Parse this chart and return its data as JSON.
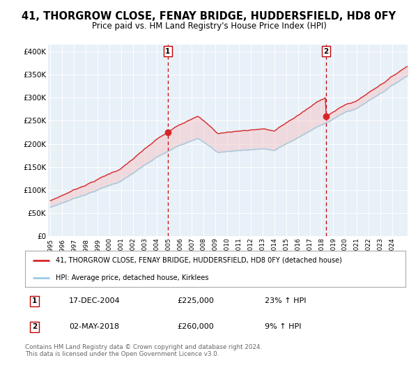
{
  "title": "41, THORGROW CLOSE, FENAY BRIDGE, HUDDERSFIELD, HD8 0FY",
  "subtitle": "Price paid vs. HM Land Registry's House Price Index (HPI)",
  "title_fontsize": 10.5,
  "subtitle_fontsize": 8.5,
  "ylabel_ticks": [
    "£0",
    "£50K",
    "£100K",
    "£150K",
    "£200K",
    "£250K",
    "£300K",
    "£350K",
    "£400K"
  ],
  "ytick_values": [
    0,
    50000,
    100000,
    150000,
    200000,
    250000,
    300000,
    350000,
    400000
  ],
  "ylim": [
    0,
    415000
  ],
  "xlim_start": 1994.8,
  "xlim_end": 2025.3,
  "xtick_years": [
    1995,
    1996,
    1997,
    1998,
    1999,
    2000,
    2001,
    2002,
    2003,
    2004,
    2005,
    2006,
    2007,
    2008,
    2009,
    2010,
    2011,
    2012,
    2013,
    2014,
    2015,
    2016,
    2017,
    2018,
    2019,
    2020,
    2021,
    2022,
    2023,
    2024
  ],
  "hpi_color": "#9ecae1",
  "hpi_fill_color": "#c6dbef",
  "price_color": "#d62728",
  "marker1_date": 2004.96,
  "marker1_price": 225000,
  "marker2_date": 2018.37,
  "marker2_price": 260000,
  "marker_line_color": "#c00000",
  "marker_box_color": "#c00000",
  "legend_label1": "41, THORGROW CLOSE, FENAY BRIDGE, HUDDERSFIELD, HD8 0FY (detached house)",
  "legend_label2": "HPI: Average price, detached house, Kirklees",
  "table_row1": [
    "1",
    "17-DEC-2004",
    "£225,000",
    "23% ↑ HPI"
  ],
  "table_row2": [
    "2",
    "02-MAY-2018",
    "£260,000",
    "9% ↑ HPI"
  ],
  "footnote": "Contains HM Land Registry data © Crown copyright and database right 2024.\nThis data is licensed under the Open Government Licence v3.0.",
  "bg_color": "#ffffff",
  "plot_bg_color": "#e8f0f8",
  "grid_color": "#ffffff"
}
